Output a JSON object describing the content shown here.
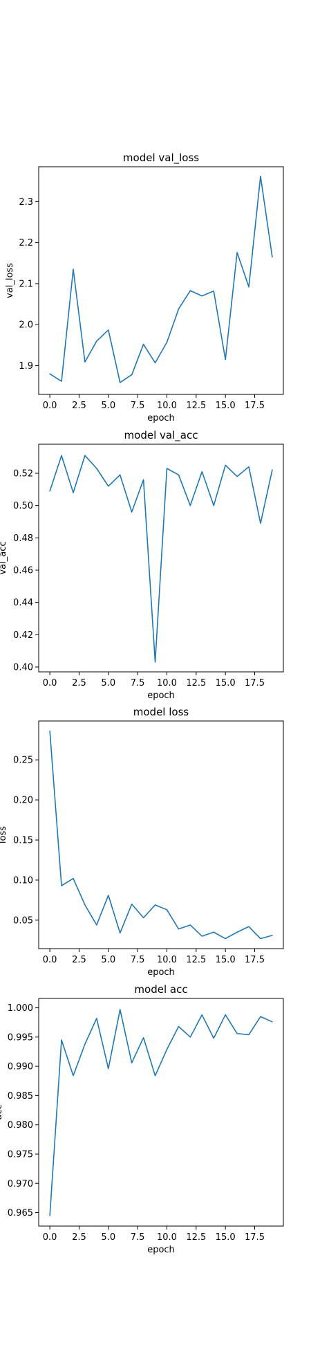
{
  "colors": {
    "series": "#1f77b4",
    "axes": "#000000",
    "background": "#ffffff"
  },
  "chart_data": [
    {
      "type": "line",
      "title": "model val_loss",
      "xlabel": "epoch",
      "ylabel": "val_loss",
      "xlim": [
        -0.95,
        19.95
      ],
      "ylim": [
        1.83,
        2.385
      ],
      "xticks": [
        0.0,
        2.5,
        5.0,
        7.5,
        10.0,
        12.5,
        15.0,
        17.5
      ],
      "xtick_labels": [
        "0.0",
        "2.5",
        "5.0",
        "7.5",
        "10.0",
        "12.5",
        "15.0",
        "17.5"
      ],
      "yticks": [
        1.9,
        2.0,
        2.1,
        2.2,
        2.3
      ],
      "ytick_labels": [
        "1.9",
        "2.0",
        "2.1",
        "2.2",
        "2.3"
      ],
      "grid": false,
      "x": [
        0,
        1,
        2,
        3,
        4,
        5,
        6,
        7,
        8,
        9,
        10,
        11,
        12,
        13,
        14,
        15,
        16,
        17,
        18,
        19
      ],
      "series": [
        {
          "values": [
            1.88,
            1.862,
            2.135,
            1.909,
            1.96,
            1.987,
            1.859,
            1.878,
            1.952,
            1.907,
            1.957,
            2.038,
            2.083,
            2.07,
            2.082,
            1.915,
            2.176,
            2.092,
            2.362,
            2.165
          ]
        }
      ]
    },
    {
      "type": "line",
      "title": "model val_acc",
      "xlabel": "epoch",
      "ylabel": "val_acc",
      "xlim": [
        -0.95,
        19.95
      ],
      "ylim": [
        0.397,
        0.538
      ],
      "xticks": [
        0.0,
        2.5,
        5.0,
        7.5,
        10.0,
        12.5,
        15.0,
        17.5
      ],
      "xtick_labels": [
        "0.0",
        "2.5",
        "5.0",
        "7.5",
        "10.0",
        "12.5",
        "15.0",
        "17.5"
      ],
      "yticks": [
        0.4,
        0.42,
        0.44,
        0.46,
        0.48,
        0.5,
        0.52
      ],
      "ytick_labels": [
        "0.40",
        "0.42",
        "0.44",
        "0.46",
        "0.48",
        "0.50",
        "0.52"
      ],
      "grid": false,
      "x": [
        0,
        1,
        2,
        3,
        4,
        5,
        6,
        7,
        8,
        9,
        10,
        11,
        12,
        13,
        14,
        15,
        16,
        17,
        18,
        19
      ],
      "series": [
        {
          "values": [
            0.509,
            0.531,
            0.508,
            0.531,
            0.523,
            0.512,
            0.519,
            0.496,
            0.516,
            0.403,
            0.523,
            0.519,
            0.5,
            0.521,
            0.5,
            0.525,
            0.518,
            0.524,
            0.489,
            0.522
          ]
        }
      ]
    },
    {
      "type": "line",
      "title": "model loss",
      "xlabel": "epoch",
      "ylabel": "loss",
      "xlim": [
        -0.95,
        19.95
      ],
      "ylim": [
        0.0145,
        0.2985
      ],
      "xticks": [
        0.0,
        2.5,
        5.0,
        7.5,
        10.0,
        12.5,
        15.0,
        17.5
      ],
      "xtick_labels": [
        "0.0",
        "2.5",
        "5.0",
        "7.5",
        "10.0",
        "12.5",
        "15.0",
        "17.5"
      ],
      "yticks": [
        0.05,
        0.1,
        0.15,
        0.2,
        0.25
      ],
      "ytick_labels": [
        "0.05",
        "0.10",
        "0.15",
        "0.20",
        "0.25"
      ],
      "grid": false,
      "x": [
        0,
        1,
        2,
        3,
        4,
        5,
        6,
        7,
        8,
        9,
        10,
        11,
        12,
        13,
        14,
        15,
        16,
        17,
        18,
        19
      ],
      "series": [
        {
          "values": [
            0.286,
            0.093,
            0.102,
            0.069,
            0.044,
            0.081,
            0.034,
            0.07,
            0.053,
            0.069,
            0.063,
            0.039,
            0.044,
            0.03,
            0.035,
            0.027,
            0.035,
            0.042,
            0.027,
            0.031
          ]
        }
      ]
    },
    {
      "type": "line",
      "title": "model acc",
      "xlabel": "epoch",
      "ylabel": "acc",
      "xlim": [
        -0.95,
        19.95
      ],
      "ylim": [
        0.9627,
        1.0016
      ],
      "xticks": [
        0.0,
        2.5,
        5.0,
        7.5,
        10.0,
        12.5,
        15.0,
        17.5
      ],
      "xtick_labels": [
        "0.0",
        "2.5",
        "5.0",
        "7.5",
        "10.0",
        "12.5",
        "15.0",
        "17.5"
      ],
      "yticks": [
        0.965,
        0.97,
        0.975,
        0.98,
        0.985,
        0.99,
        0.995,
        1.0
      ],
      "ytick_labels": [
        "0.965",
        "0.970",
        "0.975",
        "0.980",
        "0.985",
        "0.990",
        "0.995",
        "1.000"
      ],
      "grid": false,
      "x": [
        0,
        1,
        2,
        3,
        4,
        5,
        6,
        7,
        8,
        9,
        10,
        11,
        12,
        13,
        14,
        15,
        16,
        17,
        18,
        19
      ],
      "series": [
        {
          "values": [
            0.9645,
            0.9945,
            0.9884,
            0.9938,
            0.9982,
            0.9896,
            0.9997,
            0.9906,
            0.9949,
            0.9884,
            0.9929,
            0.9968,
            0.995,
            0.9988,
            0.9948,
            0.9988,
            0.9956,
            0.9954,
            0.9985,
            0.9976
          ]
        }
      ]
    }
  ]
}
